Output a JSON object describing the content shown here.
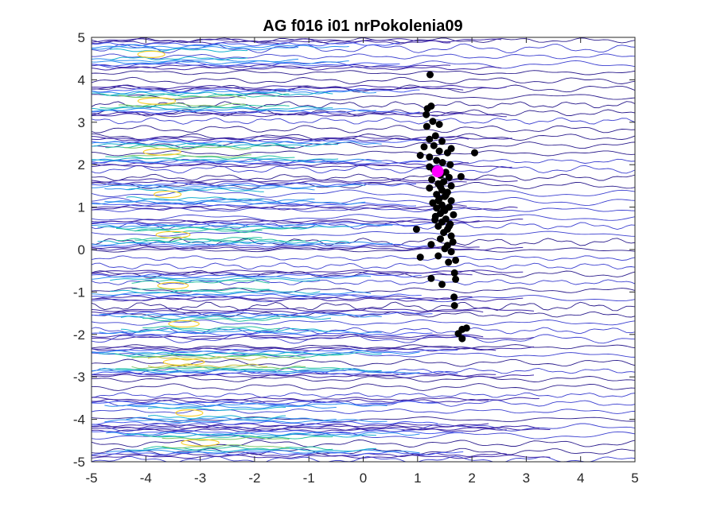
{
  "chart_data": {
    "type": "scatter",
    "title": "AG f016 i01 nrPokolenia09",
    "xlabel": "",
    "ylabel": "",
    "xlim": [
      -5,
      5
    ],
    "ylim": [
      -5,
      5
    ],
    "xticks": [
      -5,
      -4,
      -3,
      -2,
      -1,
      0,
      1,
      2,
      3,
      4,
      5
    ],
    "yticks": [
      -5,
      -4,
      -3,
      -2,
      -1,
      0,
      1,
      2,
      3,
      4,
      5
    ],
    "grid": false,
    "background": "contour",
    "contour_bands": [
      {
        "y": 4.6,
        "peak_x": -3.9,
        "intensity": 0.5
      },
      {
        "y": 3.5,
        "peak_x": -3.8,
        "intensity": 0.8
      },
      {
        "y": 2.3,
        "peak_x": -3.7,
        "intensity": 0.8
      },
      {
        "y": 1.3,
        "peak_x": -3.6,
        "intensity": 0.5
      },
      {
        "y": 0.35,
        "peak_x": -3.5,
        "intensity": 0.7
      },
      {
        "y": -0.85,
        "peak_x": -3.5,
        "intensity": 0.6
      },
      {
        "y": -1.75,
        "peak_x": -3.3,
        "intensity": 0.6
      },
      {
        "y": -2.65,
        "peak_x": -3.3,
        "intensity": 0.9
      },
      {
        "y": -3.85,
        "peak_x": -3.2,
        "intensity": 0.5
      },
      {
        "y": -4.55,
        "peak_x": -3.0,
        "intensity": 0.8
      }
    ],
    "series": [
      {
        "color": "#000000",
        "marker": "filled-circle",
        "points": [
          [
            1.23,
            4.12
          ],
          [
            1.18,
            3.32
          ],
          [
            1.25,
            3.38
          ],
          [
            1.16,
            3.18
          ],
          [
            1.28,
            3.02
          ],
          [
            1.17,
            2.9
          ],
          [
            1.4,
            2.95
          ],
          [
            1.33,
            2.68
          ],
          [
            1.22,
            2.6
          ],
          [
            1.45,
            2.55
          ],
          [
            1.3,
            2.45
          ],
          [
            1.62,
            2.38
          ],
          [
            1.12,
            2.42
          ],
          [
            1.4,
            2.32
          ],
          [
            1.55,
            2.28
          ],
          [
            1.05,
            2.22
          ],
          [
            1.22,
            2.18
          ],
          [
            1.35,
            2.1
          ],
          [
            1.46,
            2.05
          ],
          [
            1.6,
            2.0
          ],
          [
            2.05,
            2.28
          ],
          [
            1.22,
            1.95
          ],
          [
            1.3,
            1.88
          ],
          [
            1.52,
            1.82
          ],
          [
            1.42,
            1.75
          ],
          [
            1.58,
            1.7
          ],
          [
            1.26,
            1.65
          ],
          [
            1.48,
            1.6
          ],
          [
            1.38,
            1.55
          ],
          [
            1.62,
            1.5
          ],
          [
            1.22,
            1.45
          ],
          [
            1.8,
            1.72
          ],
          [
            1.45,
            1.4
          ],
          [
            1.55,
            1.35
          ],
          [
            1.35,
            1.3
          ],
          [
            1.5,
            1.25
          ],
          [
            1.4,
            1.2
          ],
          [
            1.62,
            1.15
          ],
          [
            1.28,
            1.1
          ],
          [
            1.45,
            1.05
          ],
          [
            1.58,
            1.0
          ],
          [
            1.35,
            0.98
          ],
          [
            1.5,
            0.92
          ],
          [
            1.42,
            0.85
          ],
          [
            1.66,
            0.82
          ],
          [
            1.33,
            0.78
          ],
          [
            1.52,
            0.72
          ],
          [
            1.45,
            0.65
          ],
          [
            1.6,
            0.6
          ],
          [
            1.38,
            0.55
          ],
          [
            1.55,
            0.48
          ],
          [
            1.48,
            0.4
          ],
          [
            0.98,
            0.48
          ],
          [
            1.62,
            0.32
          ],
          [
            1.42,
            0.25
          ],
          [
            1.65,
            0.18
          ],
          [
            1.55,
            0.1
          ],
          [
            1.25,
            0.12
          ],
          [
            1.5,
            0.02
          ],
          [
            1.62,
            -0.05
          ],
          [
            1.38,
            -0.15
          ],
          [
            1.7,
            -0.25
          ],
          [
            1.05,
            -0.18
          ],
          [
            1.57,
            -0.3
          ],
          [
            1.68,
            -0.55
          ],
          [
            1.7,
            -0.7
          ],
          [
            1.25,
            -0.68
          ],
          [
            1.45,
            -0.82
          ],
          [
            1.67,
            -1.12
          ],
          [
            1.68,
            -1.32
          ],
          [
            1.82,
            -1.88
          ],
          [
            1.9,
            -1.85
          ],
          [
            1.75,
            -1.98
          ],
          [
            1.82,
            -2.1
          ],
          [
            1.38,
            1.15
          ],
          [
            1.48,
            0.95
          ],
          [
            1.32,
            0.7
          ],
          [
            1.58,
            0.55
          ],
          [
            1.42,
            1.48
          ],
          [
            1.52,
            1.28
          ]
        ]
      },
      {
        "color": "#ff00ff",
        "marker": "filled-circle-large",
        "points": [
          [
            1.37,
            1.84
          ]
        ]
      }
    ]
  }
}
